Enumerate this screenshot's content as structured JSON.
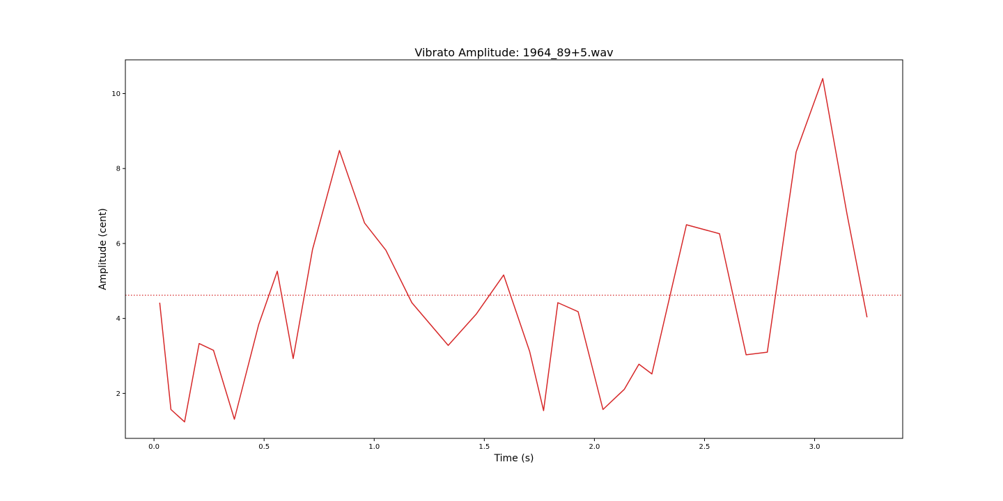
{
  "chart_data": {
    "type": "line",
    "title": "Vibrato Amplitude: 1964_89+5.wav",
    "xlabel": "Time (s)",
    "ylabel": "Amplitude (cent)",
    "xlim": [
      -0.13,
      3.4
    ],
    "ylim": [
      0.8,
      10.9
    ],
    "grid": false,
    "legend": "none",
    "x_ticks": [
      0.0,
      0.5,
      1.0,
      1.5,
      2.0,
      2.5,
      3.0
    ],
    "x_tick_labels": [
      "0.0",
      "0.5",
      "1.0",
      "1.5",
      "2.0",
      "2.5",
      "3.0"
    ],
    "y_ticks": [
      2,
      4,
      6,
      8,
      10
    ],
    "y_tick_labels": [
      "2",
      "4",
      "6",
      "8",
      "10"
    ],
    "series": [
      {
        "color": "#d62728",
        "style": "solid",
        "x": [
          0.026,
          0.077,
          0.139,
          0.205,
          0.27,
          0.365,
          0.475,
          0.56,
          0.632,
          0.72,
          0.842,
          0.956,
          1.053,
          1.171,
          1.336,
          1.464,
          1.588,
          1.706,
          1.769,
          1.834,
          1.926,
          2.039,
          2.136,
          2.202,
          2.261,
          2.418,
          2.568,
          2.689,
          2.785,
          2.916,
          3.037,
          3.147,
          3.238
        ],
        "y": [
          4.42,
          1.57,
          1.24,
          3.33,
          3.15,
          1.31,
          3.83,
          5.26,
          2.93,
          5.84,
          8.48,
          6.55,
          5.82,
          4.42,
          3.28,
          4.12,
          5.16,
          3.12,
          1.54,
          4.42,
          4.18,
          1.57,
          2.11,
          2.78,
          2.52,
          6.5,
          6.26,
          3.03,
          3.1,
          8.44,
          10.4,
          6.79,
          4.03
        ]
      }
    ],
    "reference_lines": [
      {
        "y": 4.62,
        "color": "#d62728",
        "style": "dotted"
      }
    ]
  }
}
